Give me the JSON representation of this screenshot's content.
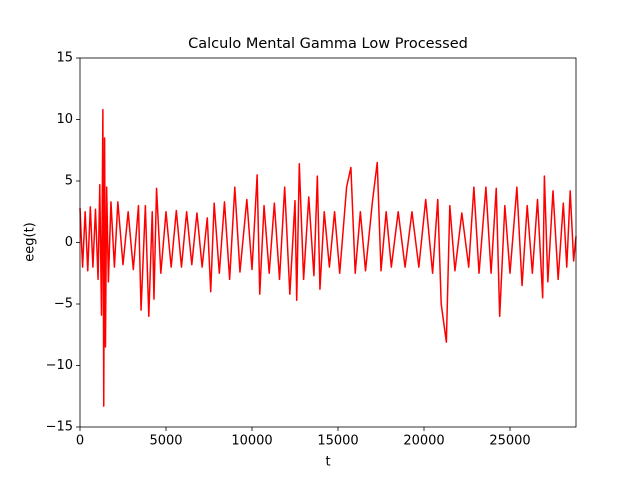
{
  "chart_data": {
    "type": "line",
    "title": "Calculo Mental Gamma Low Processed",
    "xlabel": "t",
    "ylabel": "eeg(t)",
    "xlim": [
      0,
      28837
    ],
    "ylim": [
      -15,
      15
    ],
    "xticks": [
      0,
      5000,
      10000,
      15000,
      20000,
      25000
    ],
    "yticks": [
      {
        "value": -15,
        "label": "−15"
      },
      {
        "value": -10,
        "label": "−10"
      },
      {
        "value": -5,
        "label": "−5"
      },
      0,
      5,
      10,
      15
    ],
    "series": [
      {
        "color": "#ff0000",
        "x": [
          0,
          150,
          300,
          450,
          600,
          750,
          900,
          1050,
          1150,
          1250,
          1330,
          1380,
          1430,
          1480,
          1550,
          1650,
          1800,
          2000,
          2200,
          2500,
          2800,
          3100,
          3400,
          3550,
          3800,
          4000,
          4200,
          4300,
          4450,
          4700,
          5000,
          5300,
          5600,
          5900,
          6200,
          6500,
          6800,
          7100,
          7400,
          7600,
          7800,
          8100,
          8400,
          8700,
          9000,
          9300,
          9700,
          10000,
          10300,
          10450,
          10700,
          11000,
          11300,
          11600,
          11900,
          12200,
          12500,
          12600,
          12750,
          13000,
          13300,
          13600,
          13800,
          13950,
          14200,
          14500,
          14800,
          15100,
          15500,
          15750,
          16000,
          16300,
          16600,
          17000,
          17280,
          17500,
          17800,
          18100,
          18500,
          18900,
          19300,
          19700,
          20100,
          20500,
          20800,
          21000,
          21300,
          21500,
          21800,
          22200,
          22600,
          22900,
          23200,
          23600,
          23900,
          24200,
          24400,
          24700,
          25000,
          25400,
          25700,
          26000,
          26300,
          26600,
          26900,
          27000,
          27200,
          27500,
          27800,
          28100,
          28300,
          28500,
          28700,
          28837
        ],
        "values": [
          2.8,
          -2,
          2.5,
          -2.3,
          2.9,
          -2,
          2.7,
          -3,
          4.7,
          -5.9,
          10.8,
          -13.3,
          8.5,
          -8.5,
          4.5,
          -3.2,
          3.3,
          -2,
          3.3,
          -1.8,
          2.5,
          -2.2,
          3,
          -5.5,
          3,
          -6,
          2.5,
          -4.6,
          4.4,
          -2.5,
          2.5,
          -2,
          2.6,
          -2,
          2.5,
          -1.8,
          2.4,
          -2,
          2,
          -4,
          3.2,
          -2.5,
          3.3,
          -3,
          4.5,
          -2.4,
          3.5,
          -2.2,
          5.5,
          -4.2,
          3,
          -2.5,
          3.2,
          -3,
          4.5,
          -4.2,
          3.4,
          -4.7,
          6.4,
          -3,
          3.7,
          -2.7,
          5.4,
          -3.8,
          2.5,
          -2,
          2.5,
          -2.5,
          4.5,
          6.1,
          -2.5,
          2.5,
          -2.3,
          3.3,
          6.5,
          -2.3,
          2.5,
          -2,
          2.5,
          -2,
          2.5,
          -2,
          3.5,
          -2.5,
          3.5,
          -5,
          -8.1,
          3,
          -2.3,
          2.4,
          -2,
          4.5,
          -2.5,
          4.5,
          -2.5,
          4.4,
          -6,
          3,
          -2.5,
          4.5,
          -3.5,
          3,
          -2.5,
          3.5,
          -4.5,
          5.4,
          -3.2,
          4.2,
          -3,
          3.2,
          -2,
          4.2,
          -1.5,
          0.5
        ]
      }
    ]
  }
}
